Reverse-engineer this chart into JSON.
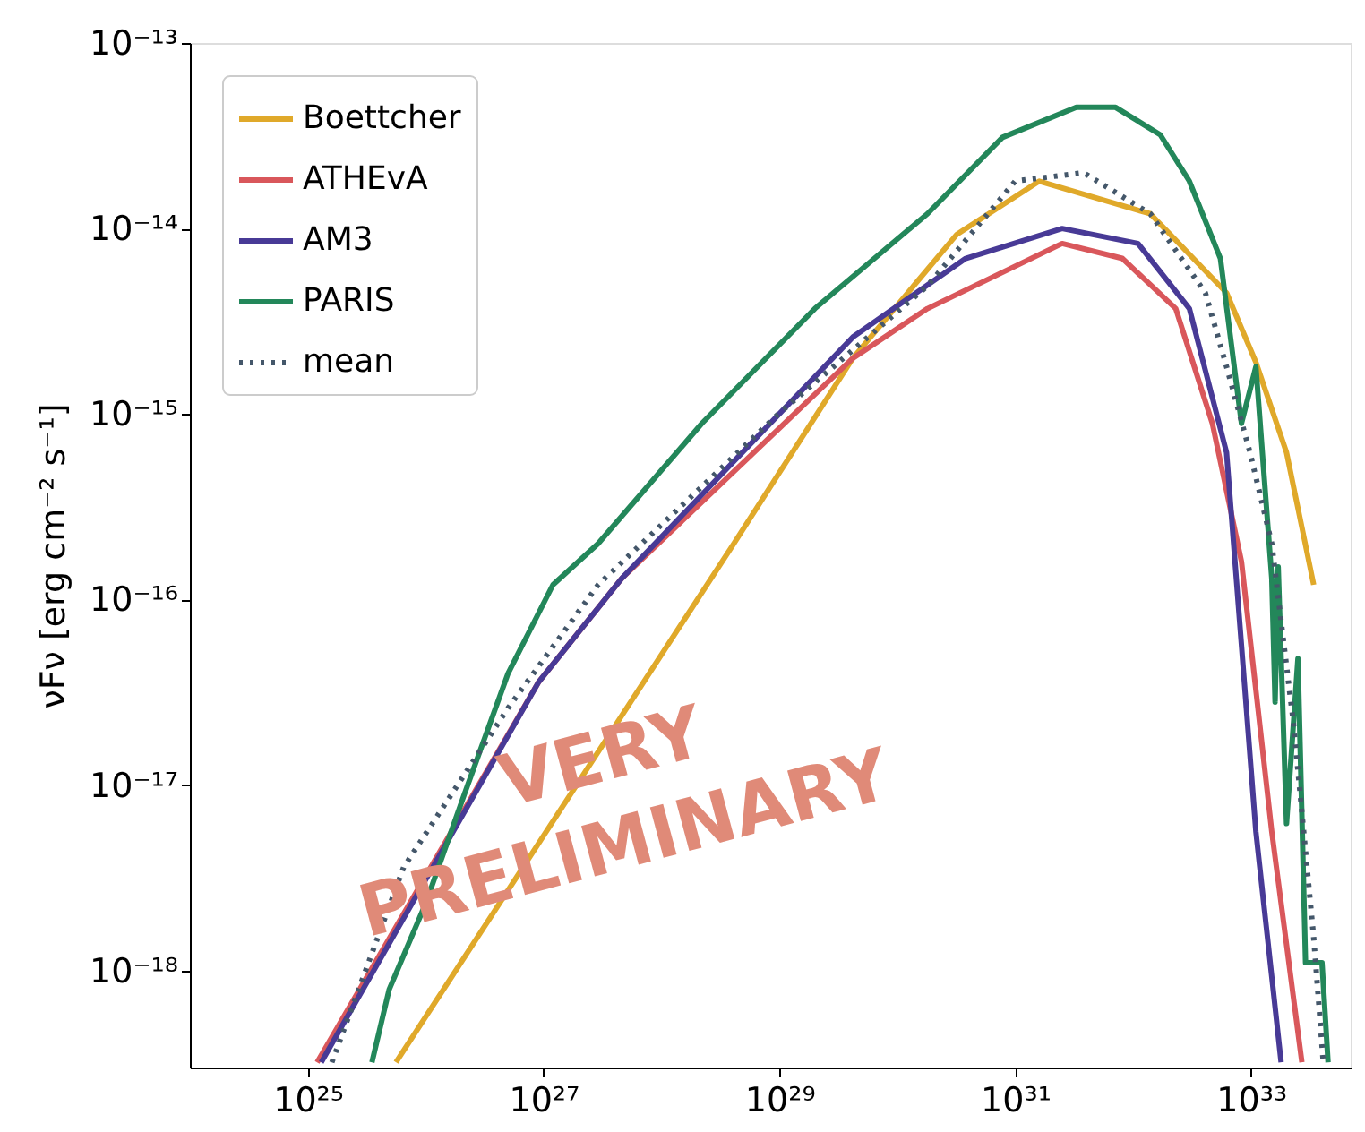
{
  "chart_data": {
    "type": "line",
    "ylabel": "νFν [erg cm⁻² s⁻¹]",
    "log": "xy",
    "grid": false,
    "legend": "top left",
    "marker": "none",
    "xlim": [
      1e+24,
      7e+33
    ],
    "ylim": [
      3e-19,
      1e-13
    ],
    "xticks": [
      {
        "value": 1e+25,
        "label": "10²⁵"
      },
      {
        "value": 1e+27,
        "label": "10²⁷"
      },
      {
        "value": 1e+29,
        "label": "10²⁹"
      },
      {
        "value": 1e+31,
        "label": "10³¹"
      },
      {
        "value": 1e+33,
        "label": "10³³"
      }
    ],
    "yticks": [
      {
        "value": 1e-18,
        "label": "10⁻¹⁸"
      },
      {
        "value": 1e-17,
        "label": "10⁻¹⁷"
      },
      {
        "value": 1e-16,
        "label": "10⁻¹⁶"
      },
      {
        "value": 1e-15,
        "label": "10⁻¹⁵"
      },
      {
        "value": 1e-14,
        "label": "10⁻¹⁴"
      },
      {
        "value": 1e-13,
        "label": "10⁻¹³"
      }
    ],
    "annotations": [
      "VERY PRELIMINARY"
    ],
    "series": [
      {
        "name": "Boettcher",
        "color": "#e0a92a",
        "line_style": "solid",
        "x": [
          5.6e+25,
          4.1e+28,
          4.2e+29,
          3.2e+30,
          1.6e+31,
          1.4e+32,
          6.2e+32,
          1.1e+33,
          2e+33,
          3.4e+33
        ],
        "values": [
          3.2e-19,
          2e-16,
          2e-15,
          9.3e-15,
          1.8e-14,
          1.2e-14,
          4.5e-15,
          1.9e-15,
          6.2e-16,
          1.2e-16
        ]
      },
      {
        "name": "ATHEvA",
        "color": "#d9575b",
        "line_style": "solid",
        "x": [
          1.2e+25,
          9.1e+26,
          4.6e+27,
          4.2e+29,
          1.8e+30,
          2.5e+31,
          8.1e+31,
          2.3e+32,
          4.7e+32,
          8.3e+32,
          1.5e+33,
          2.7e+33
        ],
        "values": [
          3.2e-19,
          3.6e-17,
          1.3e-16,
          2e-15,
          3.7e-15,
          8.3e-15,
          6.9e-15,
          3.7e-15,
          8.9e-16,
          1.6e-16,
          5.6e-18,
          3.2e-19
        ]
      },
      {
        "name": "AM3",
        "color": "#483a96",
        "line_style": "solid",
        "x": [
          1.3e+25,
          9.1e+26,
          4.6e+27,
          4.2e+29,
          3.8e+30,
          2.5e+31,
          1.1e+32,
          3e+32,
          6.2e+32,
          1.1e+33,
          1.8e+33
        ],
        "values": [
          3.2e-19,
          3.6e-17,
          1.3e-16,
          2.6e-15,
          6.9e-15,
          1e-14,
          8.3e-15,
          3.7e-15,
          6.2e-16,
          5.6e-18,
          3.2e-19
        ]
      },
      {
        "name": "PARIS",
        "color": "#23875a",
        "line_style": "solid",
        "x": [
          3.5e+25,
          4.9e+25,
          1e+26,
          2.1e+26,
          5e+26,
          1.2e+27,
          2.9e+27,
          2.2e+28,
          2e+29,
          1.8e+30,
          7.8e+30,
          3.3e+31,
          7.1e+31,
          1.7e+32,
          3e+32,
          5.5e+32,
          8.3e+32,
          1.1e+33,
          1.5e+33,
          1.6e+33,
          1.7e+33,
          2e+33,
          2.5e+33,
          2.9e+33,
          4e+33,
          4.5e+33
        ],
        "values": [
          3.2e-19,
          7.9e-19,
          2.3e-18,
          8.7e-18,
          4e-17,
          1.2e-16,
          2e-16,
          8.9e-16,
          3.7e-15,
          1.2e-14,
          3.1e-14,
          4.5e-14,
          4.5e-14,
          3.2e-14,
          1.8e-14,
          6.9e-15,
          8.9e-16,
          1.8e-15,
          1.3e-16,
          2.8e-17,
          1.5e-16,
          6.2e-18,
          4.8e-17,
          1.1e-18,
          1.1e-18,
          3.2e-19
        ]
      },
      {
        "name": "mean",
        "color": "#44576a",
        "line_style": "dotted",
        "x": [
          1.6e+25,
          6.5e+25,
          5e+26,
          2.9e+27,
          9.8e+28,
          1.8e+30,
          1e+31,
          3.8e+31,
          1.4e+32,
          4.1e+32,
          6.2e+32,
          9.8e+32,
          1.5e+33,
          2.3e+33,
          3.4e+33,
          4.1e+33
        ],
        "values": [
          3.2e-19,
          3.6e-18,
          2.6e-17,
          1.2e-16,
          1e-15,
          4.9e-15,
          1.8e-14,
          2e-14,
          1.2e-14,
          4.5e-15,
          1.8e-15,
          6.2e-16,
          2e-16,
          2.1e-17,
          1.5e-18,
          3.2e-19
        ]
      }
    ]
  }
}
